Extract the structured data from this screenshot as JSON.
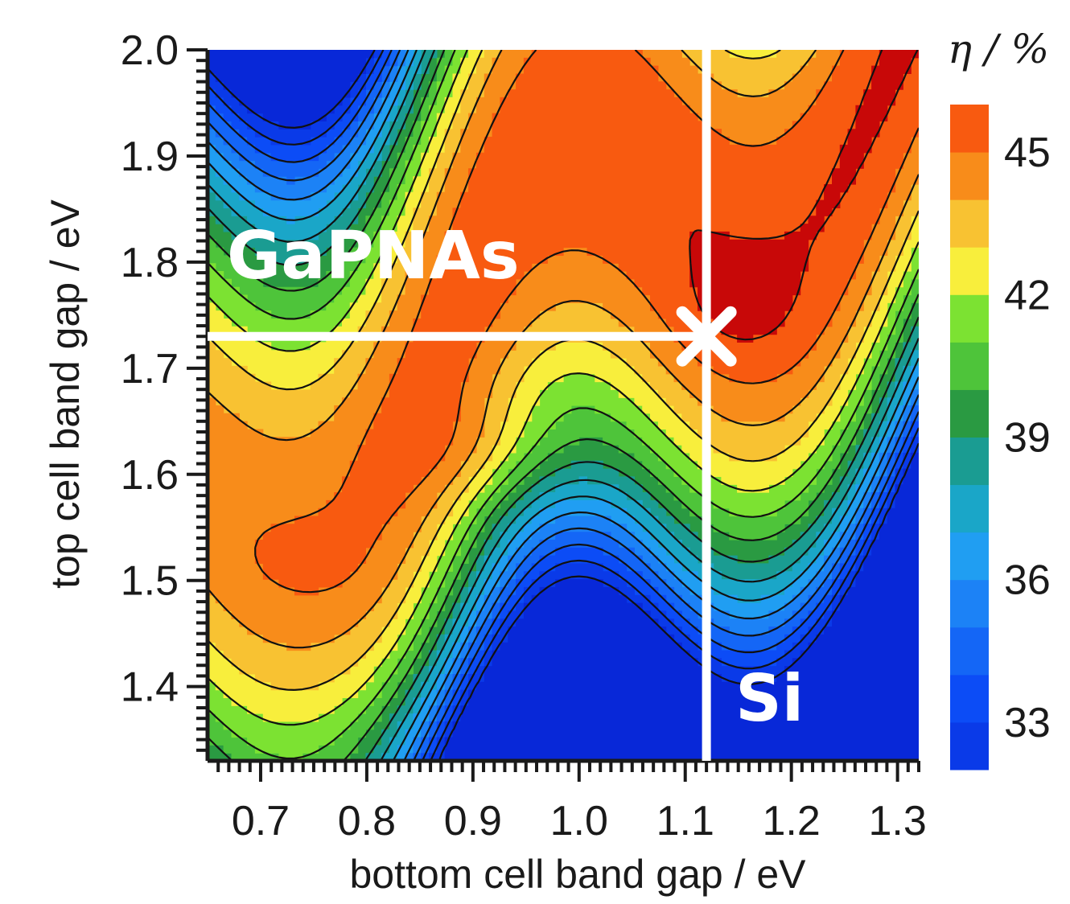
{
  "chart_data": {
    "type": "heatmap",
    "subtype": "filled-contour",
    "title": "",
    "xlabel": "bottom cell band gap / eV",
    "ylabel": "top cell band gap / eV",
    "xlim": [
      0.65,
      1.32
    ],
    "ylim": [
      1.33,
      2.0
    ],
    "xticks": [
      "0.7",
      "0.8",
      "0.9",
      "1.0",
      "1.1",
      "1.2",
      "1.3"
    ],
    "yticks": [
      "1.4",
      "1.5",
      "1.6",
      "1.7",
      "1.8",
      "1.9",
      "2.0"
    ],
    "colorbar": {
      "title": "η / %",
      "tick_labels": [
        "33",
        "36",
        "39",
        "42",
        "45"
      ],
      "range": [
        32,
        46
      ],
      "levels": [
        32.0,
        33.0,
        34.0,
        35.0,
        36.0,
        37.0,
        38.0,
        39.0,
        40.0,
        41.0,
        42.0,
        43.0,
        44.0,
        45.0,
        46.0
      ],
      "colors": [
        "#0828d8",
        "#0a3ae8",
        "#0c4cf6",
        "#1466f6",
        "#1c82f6",
        "#209ef2",
        "#1aa6c8",
        "#1a9c92",
        "#2a9a42",
        "#4ec43a",
        "#7ce232",
        "#f8ee3c",
        "#f8c232",
        "#f88c1a",
        "#f85a10",
        "#c80808"
      ]
    },
    "peaks": [
      {
        "x": 0.94,
        "y": 1.62,
        "value": 45.8
      },
      {
        "x": 1.14,
        "y": 1.74,
        "value": 44.8
      },
      {
        "x": 0.74,
        "y": 1.52,
        "value": 44.6
      }
    ],
    "annotations": [
      {
        "text": "GaPNAs",
        "x": 0.65,
        "y": 1.73
      },
      {
        "text": "Si",
        "x": 1.12,
        "y": 1.33
      }
    ],
    "reference_lines": [
      {
        "orientation": "horizontal",
        "y": 1.73,
        "from_x": 0.65,
        "to_x": 1.12
      },
      {
        "orientation": "vertical",
        "x": 1.12,
        "from_y": 1.33,
        "to_y": 2.0
      }
    ],
    "marker": {
      "symbol": "x",
      "x": 1.12,
      "y": 1.73
    }
  },
  "colors": {
    "frame": "#1a1a1a",
    "annotation": "#ffffff",
    "contour": "#111111"
  }
}
